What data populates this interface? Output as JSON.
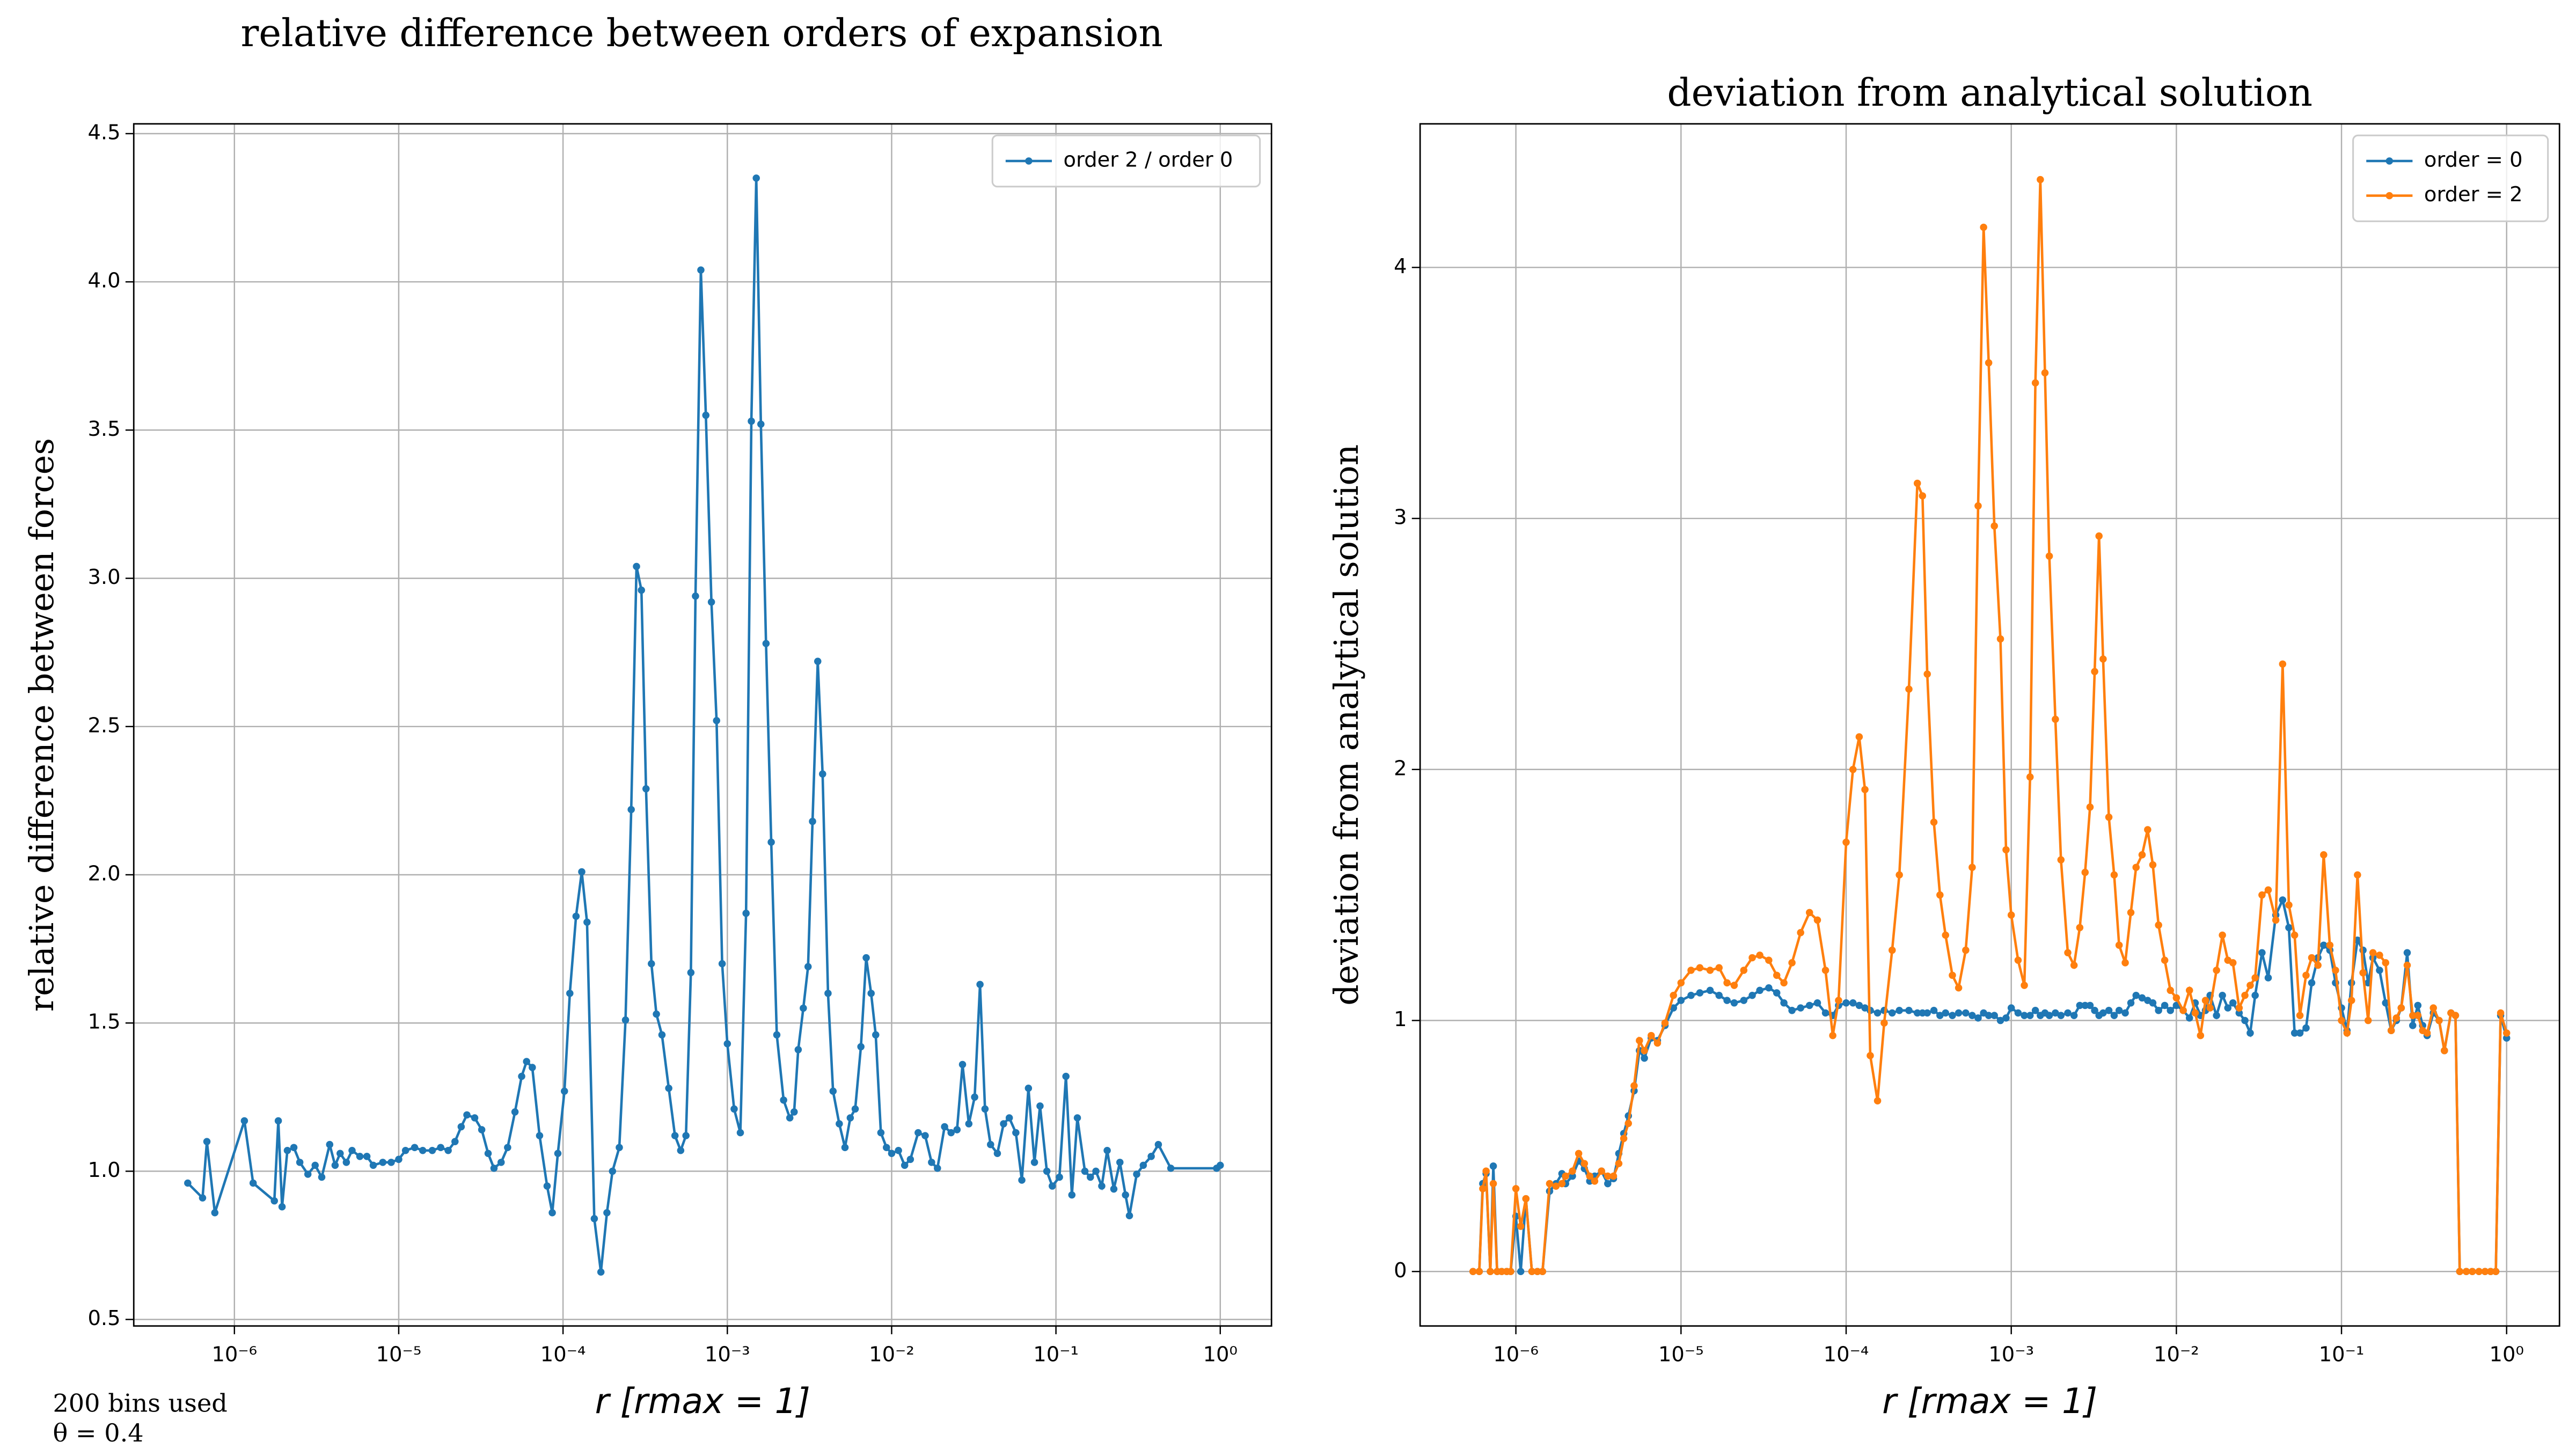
{
  "chart_data": [
    {
      "type": "line",
      "title": "relative difference between orders of expansion",
      "xlabel": "r [rmax = 1]",
      "ylabel": "relative difference between forces",
      "xscale": "log",
      "grid": true,
      "legend": "upper right",
      "xlim": [
        2.44e-07,
        2.05
      ],
      "ylim": [
        0.478,
        4.533
      ],
      "xticks": [
        {
          "value": 1e-06,
          "label": "10⁻⁶"
        },
        {
          "value": 1e-05,
          "label": "10⁻⁵"
        },
        {
          "value": 0.0001,
          "label": "10⁻⁴"
        },
        {
          "value": 0.001,
          "label": "10⁻³"
        },
        {
          "value": 0.01,
          "label": "10⁻²"
        },
        {
          "value": 0.1,
          "label": "10⁻¹"
        },
        {
          "value": 1,
          "label": "10⁰"
        }
      ],
      "yticks": [
        0.5,
        {
          "value": 1,
          "label": "1.0"
        },
        1.5,
        {
          "value": 2,
          "label": "2.0"
        },
        2.5,
        {
          "value": 3,
          "label": "3.0"
        },
        3.5,
        {
          "value": 4,
          "label": "4.0"
        },
        4.5
      ],
      "annotations": [
        "200 bins used",
        "θ = 0.4"
      ],
      "x": [
        5.2e-07,
        6.4e-07,
        6.8e-07,
        7.6e-07,
        1.15e-06,
        1.3e-06,
        1.75e-06,
        1.85e-06,
        1.95e-06,
        2.1e-06,
        2.3e-06,
        2.5e-06,
        2.8e-06,
        3.1e-06,
        3.4e-06,
        3.8e-06,
        4.1e-06,
        4.4e-06,
        4.8e-06,
        5.2e-06,
        5.8e-06,
        6.4e-06,
        7e-06,
        8e-06,
        9e-06,
        1e-05,
        1.1e-05,
        1.25e-05,
        1.4e-05,
        1.6e-05,
        1.8e-05,
        2e-05,
        2.2e-05,
        2.4e-05,
        2.6e-05,
        2.9e-05,
        3.2e-05,
        3.5e-05,
        3.8e-05,
        4.2e-05,
        4.6e-05,
        5.1e-05,
        5.6e-05,
        6e-05,
        6.5e-05,
        7.2e-05,
        8e-05,
        8.6e-05,
        9.3e-05,
        0.000102,
        0.00011,
        0.00012,
        0.00013,
        0.00014,
        0.000155,
        0.00017,
        0.000185,
        0.0002,
        0.00022,
        0.00024,
        0.00026,
        0.00028,
        0.0003,
        0.00032,
        0.000345,
        0.00037,
        0.0004,
        0.00044,
        0.00048,
        0.00052,
        0.00056,
        0.0006,
        0.00064,
        0.00069,
        0.00074,
        0.0008,
        0.00086,
        0.00093,
        0.001,
        0.0011,
        0.0012,
        0.0013,
        0.0014,
        0.0015,
        0.0016,
        0.00172,
        0.00185,
        0.002,
        0.0022,
        0.0024,
        0.00255,
        0.0027,
        0.0029,
        0.0031,
        0.0033,
        0.00355,
        0.0038,
        0.0041,
        0.0044,
        0.0048,
        0.0052,
        0.0056,
        0.006,
        0.0065,
        0.007,
        0.0075,
        0.008,
        0.0086,
        0.0093,
        0.01,
        0.011,
        0.012,
        0.013,
        0.0145,
        0.016,
        0.0175,
        0.019,
        0.021,
        0.023,
        0.025,
        0.027,
        0.0295,
        0.032,
        0.0345,
        0.037,
        0.04,
        0.044,
        0.048,
        0.052,
        0.057,
        0.062,
        0.068,
        0.074,
        0.08,
        0.088,
        0.095,
        0.105,
        0.115,
        0.125,
        0.135,
        0.15,
        0.162,
        0.175,
        0.19,
        0.205,
        0.225,
        0.245,
        0.265,
        0.28,
        0.31,
        0.34,
        0.38,
        0.42,
        0.5,
        0.95,
        1.0
      ],
      "series": [
        {
          "name": "order 2 / order 0",
          "color": "#1f77b4",
          "values": [
            0.96,
            0.91,
            1.1,
            0.86,
            1.17,
            0.96,
            0.9,
            1.17,
            0.88,
            1.07,
            1.08,
            1.03,
            0.99,
            1.02,
            0.98,
            1.09,
            1.02,
            1.06,
            1.03,
            1.07,
            1.05,
            1.05,
            1.02,
            1.03,
            1.03,
            1.04,
            1.07,
            1.08,
            1.07,
            1.07,
            1.08,
            1.07,
            1.1,
            1.15,
            1.19,
            1.18,
            1.14,
            1.06,
            1.01,
            1.03,
            1.08,
            1.2,
            1.32,
            1.37,
            1.35,
            1.12,
            0.95,
            0.86,
            1.06,
            1.27,
            1.6,
            1.86,
            2.01,
            1.84,
            0.84,
            0.66,
            0.86,
            1.0,
            1.08,
            1.51,
            2.22,
            3.04,
            2.96,
            2.29,
            1.7,
            1.53,
            1.46,
            1.28,
            1.12,
            1.07,
            1.12,
            1.67,
            2.94,
            4.04,
            3.55,
            2.92,
            2.52,
            1.7,
            1.43,
            1.21,
            1.13,
            1.87,
            3.53,
            4.35,
            3.52,
            2.78,
            2.11,
            1.46,
            1.24,
            1.18,
            1.2,
            1.41,
            1.55,
            1.69,
            2.18,
            2.72,
            2.34,
            1.6,
            1.27,
            1.16,
            1.08,
            1.18,
            1.21,
            1.42,
            1.72,
            1.6,
            1.46,
            1.13,
            1.08,
            1.06,
            1.07,
            1.02,
            1.04,
            1.13,
            1.12,
            1.03,
            1.01,
            1.15,
            1.13,
            1.14,
            1.36,
            1.16,
            1.25,
            1.63,
            1.21,
            1.09,
            1.06,
            1.16,
            1.18,
            1.13,
            0.97,
            1.28,
            1.03,
            1.22,
            1.0,
            0.95,
            0.98,
            1.32,
            0.92,
            1.18,
            1.0,
            0.98,
            1.0,
            0.95,
            1.07,
            0.94,
            1.03,
            0.92,
            0.85,
            0.99,
            1.02,
            1.05,
            1.09,
            1.01,
            1.01,
            1.02
          ]
        }
      ]
    },
    {
      "type": "line",
      "title": "deviation from analytical solution",
      "xlabel": "r [rmax = 1]",
      "ylabel": "deviation from analytical solution",
      "xscale": "log",
      "grid": true,
      "legend": "upper right",
      "xlim": [
        2.63e-07,
        2.09
      ],
      "ylim": [
        -0.217,
        4.572
      ],
      "xticks": [
        {
          "value": 1e-06,
          "label": "10⁻⁶"
        },
        {
          "value": 1e-05,
          "label": "10⁻⁵"
        },
        {
          "value": 0.0001,
          "label": "10⁻⁴"
        },
        {
          "value": 0.001,
          "label": "10⁻³"
        },
        {
          "value": 0.01,
          "label": "10⁻²"
        },
        {
          "value": 0.1,
          "label": "10⁻¹"
        },
        {
          "value": 1,
          "label": "10⁰"
        }
      ],
      "yticks": [
        0,
        1,
        2,
        3,
        4
      ],
      "x": [
        5.5e-07,
        6e-07,
        6.3e-07,
        6.6e-07,
        7e-07,
        7.3e-07,
        7.7e-07,
        8.2e-07,
        8.8e-07,
        9.3e-07,
        1e-06,
        1.07e-06,
        1.15e-06,
        1.25e-06,
        1.35e-06,
        1.45e-06,
        1.6e-06,
        1.75e-06,
        1.9e-06,
        2e-06,
        2.2e-06,
        2.4e-06,
        2.6e-06,
        2.8e-06,
        3e-06,
        3.3e-06,
        3.6e-06,
        3.9e-06,
        4.2e-06,
        4.5e-06,
        4.8e-06,
        5.2e-06,
        5.6e-06,
        6e-06,
        6.6e-06,
        7.2e-06,
        8e-06,
        9e-06,
        1e-05,
        1.15e-05,
        1.3e-05,
        1.5e-05,
        1.7e-05,
        1.9e-05,
        2.1e-05,
        2.4e-05,
        2.7e-05,
        3e-05,
        3.4e-05,
        3.8e-05,
        4.2e-05,
        4.7e-05,
        5.3e-05,
        6e-05,
        6.7e-05,
        7.5e-05,
        8.3e-05,
        9e-05,
        0.0001,
        0.00011,
        0.00012,
        0.00013,
        0.00014,
        0.000155,
        0.00017,
        0.00019,
        0.00021,
        0.00024,
        0.00027,
        0.00029,
        0.00031,
        0.00034,
        0.00037,
        0.0004,
        0.00044,
        0.00048,
        0.00053,
        0.00058,
        0.00063,
        0.00068,
        0.00073,
        0.00079,
        0.00086,
        0.00093,
        0.001,
        0.0011,
        0.0012,
        0.0013,
        0.0014,
        0.0015,
        0.0016,
        0.0017,
        0.00185,
        0.002,
        0.0022,
        0.0024,
        0.0026,
        0.0028,
        0.003,
        0.0032,
        0.0034,
        0.0036,
        0.0039,
        0.0042,
        0.0045,
        0.0049,
        0.0053,
        0.0057,
        0.0062,
        0.0067,
        0.0072,
        0.0078,
        0.0085,
        0.0092,
        0.01,
        0.011,
        0.012,
        0.013,
        0.014,
        0.015,
        0.016,
        0.0175,
        0.019,
        0.0205,
        0.022,
        0.024,
        0.026,
        0.028,
        0.03,
        0.033,
        0.036,
        0.04,
        0.044,
        0.048,
        0.052,
        0.056,
        0.061,
        0.066,
        0.072,
        0.078,
        0.085,
        0.092,
        0.1,
        0.108,
        0.115,
        0.125,
        0.135,
        0.145,
        0.155,
        0.17,
        0.185,
        0.2,
        0.215,
        0.23,
        0.25,
        0.27,
        0.29,
        0.31,
        0.33,
        0.36,
        0.39,
        0.42,
        0.46,
        0.49,
        0.52,
        0.57,
        0.62,
        0.68,
        0.74,
        0.8,
        0.86,
        0.92,
        1.0
      ],
      "series": [
        {
          "name": "order = 0",
          "color": "#1f77b4",
          "values": [
            0,
            0,
            0.35,
            0.39,
            0,
            0.42,
            0,
            0,
            0,
            0,
            0.22,
            0,
            0.29,
            0,
            0,
            0,
            0.32,
            0.35,
            0.39,
            0.35,
            0.38,
            0.44,
            0.41,
            0.36,
            0.38,
            0.4,
            0.35,
            0.37,
            0.47,
            0.55,
            0.62,
            0.72,
            0.88,
            0.85,
            0.93,
            0.92,
            0.98,
            1.05,
            1.08,
            1.1,
            1.11,
            1.12,
            1.1,
            1.08,
            1.07,
            1.08,
            1.1,
            1.12,
            1.13,
            1.11,
            1.07,
            1.04,
            1.05,
            1.06,
            1.07,
            1.03,
            1.02,
            1.06,
            1.07,
            1.07,
            1.06,
            1.05,
            1.04,
            1.03,
            1.04,
            1.03,
            1.04,
            1.04,
            1.03,
            1.03,
            1.03,
            1.04,
            1.02,
            1.03,
            1.02,
            1.03,
            1.03,
            1.02,
            1.01,
            1.03,
            1.02,
            1.02,
            1.0,
            1.01,
            1.05,
            1.03,
            1.02,
            1.02,
            1.04,
            1.02,
            1.03,
            1.02,
            1.03,
            1.02,
            1.03,
            1.02,
            1.06,
            1.06,
            1.06,
            1.04,
            1.02,
            1.03,
            1.04,
            1.02,
            1.04,
            1.03,
            1.07,
            1.1,
            1.09,
            1.08,
            1.07,
            1.04,
            1.06,
            1.04,
            1.06,
            1.04,
            1.01,
            1.07,
            1.02,
            1.04,
            1.1,
            1.02,
            1.1,
            1.05,
            1.07,
            1.03,
            1.0,
            0.95,
            1.1,
            1.27,
            1.17,
            1.42,
            1.48,
            1.37,
            0.95,
            0.95,
            0.97,
            1.15,
            1.25,
            1.3,
            1.28,
            1.15,
            1.05,
            0.96,
            1.15,
            1.32,
            1.28,
            1.15,
            1.25,
            1.2,
            1.07,
            0.96,
            1.0,
            1.05,
            1.27,
            0.98,
            1.06,
            0.98,
            0.94,
            1.03,
            1.0,
            0.88,
            1.03,
            1.02,
            0,
            0,
            0,
            0,
            0,
            0,
            0,
            1.02,
            0.93
          ]
        },
        {
          "name": "order = 2",
          "color": "#ff7f0e",
          "values": [
            0,
            0,
            0.33,
            0.4,
            0,
            0.35,
            0,
            0,
            0,
            0,
            0.33,
            0.18,
            0.29,
            0,
            0,
            0,
            0.35,
            0.34,
            0.35,
            0.38,
            0.4,
            0.47,
            0.43,
            0.38,
            0.36,
            0.4,
            0.38,
            0.38,
            0.43,
            0.53,
            0.59,
            0.74,
            0.92,
            0.88,
            0.94,
            0.91,
            0.99,
            1.1,
            1.15,
            1.2,
            1.21,
            1.2,
            1.21,
            1.15,
            1.14,
            1.2,
            1.25,
            1.26,
            1.24,
            1.18,
            1.15,
            1.23,
            1.35,
            1.43,
            1.4,
            1.2,
            0.94,
            1.08,
            1.71,
            2.0,
            2.13,
            1.92,
            0.86,
            0.68,
            0.99,
            1.28,
            1.58,
            2.32,
            3.14,
            3.09,
            2.38,
            1.79,
            1.5,
            1.34,
            1.18,
            1.13,
            1.28,
            1.61,
            3.05,
            4.16,
            3.62,
            2.97,
            2.52,
            1.68,
            1.42,
            1.24,
            1.14,
            1.97,
            3.54,
            4.35,
            3.58,
            2.85,
            2.2,
            1.64,
            1.27,
            1.22,
            1.37,
            1.59,
            1.85,
            2.39,
            2.93,
            2.44,
            1.81,
            1.58,
            1.3,
            1.23,
            1.43,
            1.61,
            1.66,
            1.76,
            1.62,
            1.38,
            1.24,
            1.12,
            1.09,
            1.04,
            1.12,
            1.03,
            0.94,
            1.08,
            1.05,
            1.2,
            1.34,
            1.24,
            1.23,
            1.05,
            1.1,
            1.14,
            1.17,
            1.5,
            1.52,
            1.4,
            2.42,
            1.46,
            1.34,
            1.02,
            1.18,
            1.25,
            1.22,
            1.66,
            1.3,
            1.2,
            1.0,
            0.95,
            1.08,
            1.58,
            1.19,
            1.0,
            1.27,
            1.26,
            1.23,
            0.96,
            1.01,
            1.05,
            1.22,
            1.02,
            1.02,
            0.96,
            0.95,
            1.05,
            1.0,
            0.88,
            1.03,
            1.02,
            0,
            0,
            0,
            0,
            0,
            0,
            0,
            1.03,
            0.95
          ]
        }
      ]
    }
  ]
}
